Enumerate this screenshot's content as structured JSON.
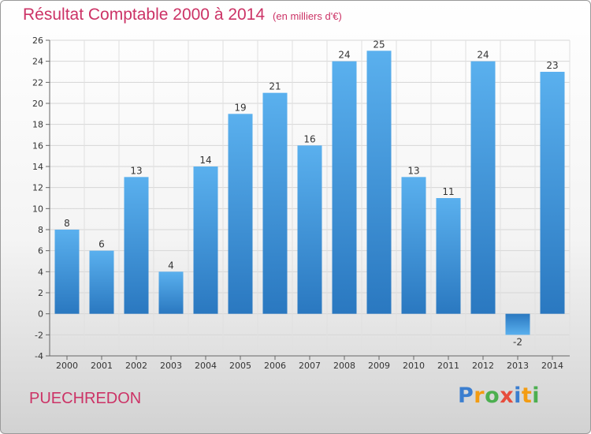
{
  "chart_data": {
    "type": "bar",
    "title": "Résultat Comptable 2000 à 2014",
    "unit_note": "(en milliers d'€)",
    "categories": [
      "2000",
      "2001",
      "2002",
      "2003",
      "2004",
      "2005",
      "2006",
      "2007",
      "2008",
      "2009",
      "2010",
      "2011",
      "2012",
      "2013",
      "2014"
    ],
    "values": [
      8,
      6,
      13,
      4,
      14,
      19,
      21,
      16,
      24,
      25,
      13,
      11,
      24,
      -2,
      23
    ],
    "y_ticks": [
      -4,
      -2,
      0,
      2,
      4,
      6,
      8,
      10,
      12,
      14,
      16,
      18,
      20,
      22,
      24,
      26
    ],
    "ylim": [
      -4,
      26
    ],
    "grid": true,
    "xlabel": "",
    "ylabel": "",
    "bar_color": "#3a8fd6"
  },
  "commune": "PUECHREDON",
  "brand": {
    "letters": [
      "P",
      "r",
      "o",
      "x",
      "i",
      "t",
      "i"
    ],
    "colors": [
      "#3b7ecf",
      "#f39c12",
      "#4caf50",
      "#e74c3c",
      "#3b7ecf",
      "#f39c12",
      "#4caf50"
    ]
  }
}
